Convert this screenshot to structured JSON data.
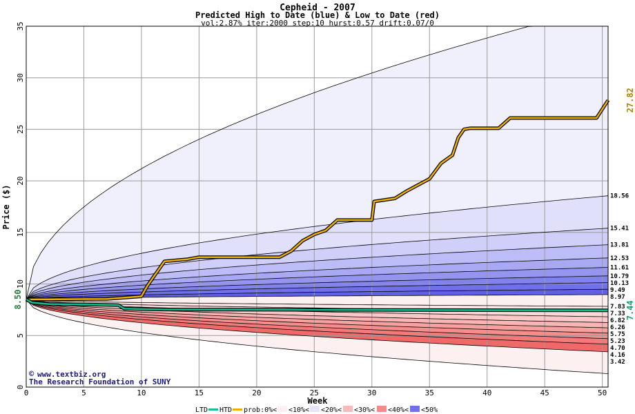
{
  "chart_data": {
    "type": "area",
    "title": "Cepheid - 2007",
    "subtitle": "Predicted High to Date (blue) &  Low to Date (red)",
    "params": "vol:2.87% iter:2000 step:10 hurst:0.57 drift:0.07/0",
    "xlabel": "Week",
    "ylabel": "Price ($)",
    "xlim": [
      0,
      50.5
    ],
    "ylim": [
      0,
      35
    ],
    "xticks": [
      0,
      5,
      10,
      15,
      20,
      25,
      30,
      35,
      40,
      45,
      50
    ],
    "yticks": [
      0,
      5,
      10,
      15,
      20,
      25,
      30,
      35
    ],
    "start_price": 8.5,
    "start_label": "8.50",
    "high_band_finals": [
      37.0,
      18.56,
      15.41,
      13.81,
      12.53,
      11.61,
      10.79,
      10.13,
      9.49,
      8.97
    ],
    "low_band_finals": [
      7.83,
      7.33,
      6.82,
      6.26,
      5.75,
      5.23,
      4.7,
      4.16,
      3.42,
      1.3
    ],
    "right_labels": [
      "18.56",
      "15.41",
      "13.81",
      "12.53",
      "11.61",
      "10.79",
      "10.13",
      "9.49",
      "8.97",
      "7.83",
      "7.33",
      "6.82",
      "6.26",
      "5.75",
      "5.23",
      "4.70",
      "4.16",
      "3.42"
    ],
    "band_colors_high": [
      "#f0f0fd",
      "#e0e0fb",
      "#cfcff9",
      "#bcbcf6",
      "#a9a9f3",
      "#9595f0",
      "#8282ed",
      "#7070ea",
      "#6060e6"
    ],
    "band_colors_low": [
      "#fde6e6",
      "#fcd7d7",
      "#fbc7c7",
      "#f9b4b4",
      "#f7a0a0",
      "#f58d8d",
      "#f37a7a",
      "#f06969",
      "#fdf0f0"
    ],
    "htd_series": {
      "name": "HTD",
      "color": "#f0b000",
      "final_label": "27.82",
      "x": [
        0,
        7,
        10,
        10.5,
        11,
        11.5,
        12,
        14,
        15,
        22,
        23,
        24,
        25,
        26,
        27,
        30,
        30.2,
        32,
        33,
        35,
        36,
        37,
        37.5,
        38,
        38.5,
        41,
        42,
        49.5,
        50.5
      ],
      "y": [
        8.5,
        8.55,
        8.8,
        9.8,
        10.6,
        11.4,
        12.2,
        12.4,
        12.6,
        12.6,
        13.2,
        14.2,
        14.8,
        15.2,
        16.2,
        16.2,
        18.0,
        18.3,
        19.0,
        20.2,
        21.7,
        22.5,
        24.2,
        25.0,
        25.1,
        25.1,
        26.1,
        26.1,
        27.82
      ]
    },
    "ltd_series": {
      "name": "LTD",
      "color": "#10c090",
      "final_label": "7.44",
      "x": [
        0,
        0.5,
        2,
        6,
        8,
        8.5,
        12,
        50.5
      ],
      "y": [
        8.5,
        8.2,
        8.05,
        8.0,
        7.95,
        7.6,
        7.52,
        7.44
      ]
    },
    "legend": {
      "ltd": "LTD",
      "htd": "HTD",
      "prob": "prob:0%<",
      "b10": "<10%<",
      "b20": "<20%<",
      "b30": "<30%<",
      "b40": "<40%<",
      "b50": "<50%"
    },
    "credit_url": "www.textbiz.org",
    "credit_org": "The Research Foundation of SUNY",
    "grid": true
  }
}
